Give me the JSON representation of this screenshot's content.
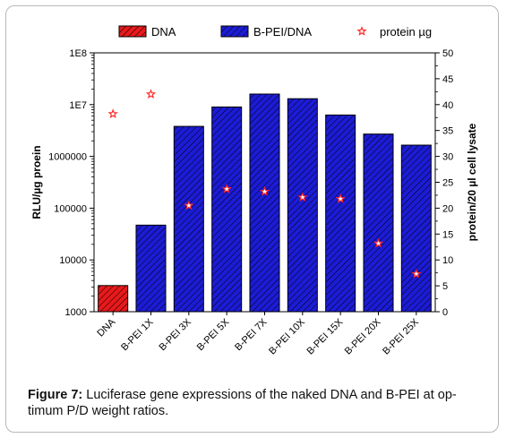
{
  "chart_data": {
    "type": "bar",
    "categories": [
      "DNA",
      "B-PEI 1X",
      "B-PEI 3X",
      "B-PEI 5X",
      "B-PEI 7X",
      "B-PEI 10X",
      "B-PEI 15X",
      "B-PEI 20X",
      "B-PEI 25X"
    ],
    "series": [
      {
        "name": "DNA",
        "axis": "left",
        "kind": "bar",
        "color": "#e8191c",
        "values": [
          3200,
          null,
          null,
          null,
          null,
          null,
          null,
          null,
          null
        ]
      },
      {
        "name": "B-PEI/DNA",
        "axis": "left",
        "kind": "bar",
        "color": "#1c1cd6",
        "values": [
          null,
          47000,
          3800000,
          9000000,
          16000000,
          13000000,
          6300000,
          2700000,
          1650000
        ]
      },
      {
        "name": "protein µg",
        "axis": "right",
        "kind": "scatter",
        "marker": "star",
        "color": "#ff2020",
        "values": [
          38.2,
          42,
          20.5,
          23.7,
          23.2,
          22.1,
          21.8,
          13.2,
          7.3
        ]
      }
    ],
    "left_axis": {
      "label": "RLU/µg proein",
      "scale": "log",
      "range": [
        1000,
        100000000
      ],
      "ticks": [
        1000,
        10000,
        100000,
        1000000,
        10000000,
        100000000
      ],
      "tick_labels": [
        "1000",
        "10000",
        "100000",
        "1000000",
        "1E7",
        "1E8"
      ]
    },
    "right_axis": {
      "label": "protein/20 µl cell lysate",
      "scale": "linear",
      "range": [
        0,
        50
      ],
      "ticks": [
        0,
        5,
        10,
        15,
        20,
        25,
        30,
        35,
        40,
        45,
        50
      ],
      "tick_labels": [
        "0",
        "5",
        "10",
        "15",
        "20",
        "25",
        "30",
        "35",
        "40",
        "45",
        "50"
      ]
    },
    "legend": {
      "placement": "top",
      "entries": [
        "DNA",
        "B-PEI/DNA",
        "protein µg"
      ]
    },
    "grid": false
  },
  "caption": {
    "label": "Figure 7:",
    "text": " Luciferase gene expressions of the naked DNA and B-PEI at op-timum P/D weight ratios."
  }
}
